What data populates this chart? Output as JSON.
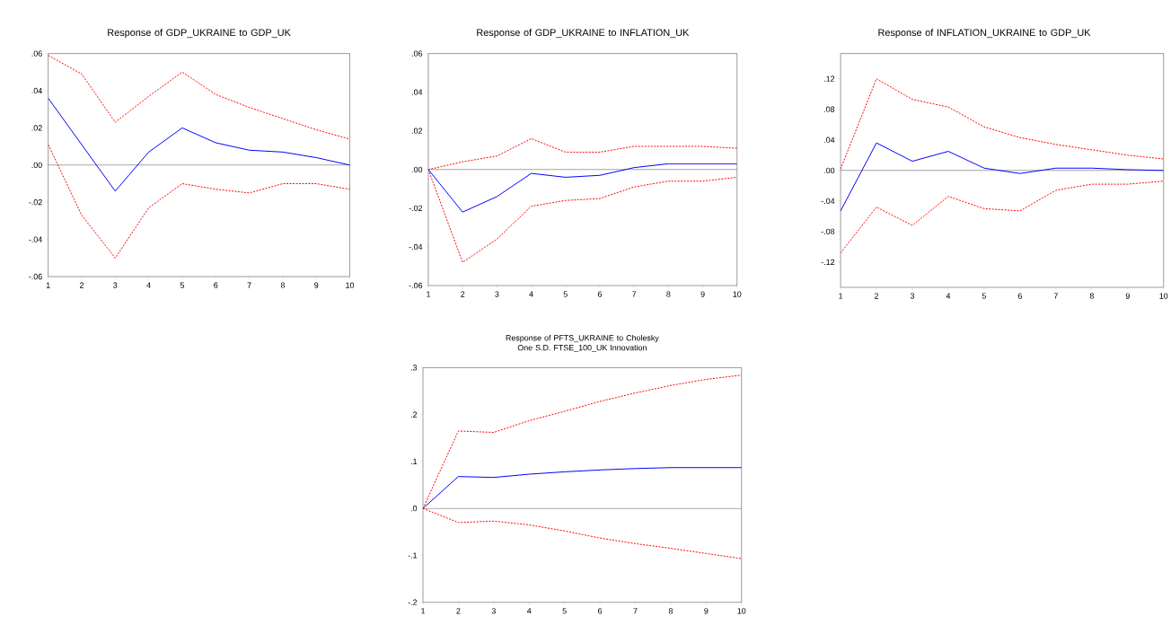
{
  "chart_data": [
    {
      "type": "line",
      "title": "Response of GDP_UKRAINE to GDP_UK",
      "x": [
        1,
        2,
        3,
        4,
        5,
        6,
        7,
        8,
        9,
        10
      ],
      "xlim": [
        1,
        10
      ],
      "xticks": [
        1,
        2,
        3,
        4,
        5,
        6,
        7,
        8,
        9,
        10
      ],
      "ylim": [
        -0.06,
        0.06
      ],
      "yticks": [
        {
          "value": -0.06,
          "label": "-.06"
        },
        {
          "value": -0.04,
          "label": "-.04"
        },
        {
          "value": -0.02,
          "label": "-.02"
        },
        {
          "value": 0,
          "label": ".00"
        },
        {
          "value": 0.02,
          "label": ".02"
        },
        {
          "value": 0.04,
          "label": ".04"
        },
        {
          "value": 0.06,
          "label": ".06"
        }
      ],
      "series": [
        {
          "color": "#0000ff",
          "line_style": "solid",
          "values": [
            0.036,
            0.011,
            -0.014,
            0.007,
            0.02,
            0.012,
            0.008,
            0.007,
            0.004,
            0.0
          ]
        },
        {
          "color": "#ff0000",
          "line_style": "dotted",
          "values": [
            0.059,
            0.049,
            0.023,
            0.037,
            0.05,
            0.038,
            0.031,
            0.025,
            0.019,
            0.014
          ]
        },
        {
          "color": "#ff0000",
          "line_style": "dotted",
          "values": [
            0.011,
            -0.027,
            -0.05,
            -0.023,
            -0.01,
            -0.013,
            -0.015,
            -0.01,
            -0.01,
            -0.013
          ]
        }
      ],
      "ref_lines": [
        {
          "axis": "y",
          "value": 0,
          "color": "#000000"
        }
      ],
      "marker": "none"
    },
    {
      "type": "line",
      "title": "Response of GDP_UKRAINE to INFLATION_UK",
      "x": [
        1,
        2,
        3,
        4,
        5,
        6,
        7,
        8,
        9,
        10
      ],
      "xlim": [
        1,
        10
      ],
      "xticks": [
        1,
        2,
        3,
        4,
        5,
        6,
        7,
        8,
        9,
        10
      ],
      "ylim": [
        -0.06,
        0.06
      ],
      "yticks": [
        {
          "value": -0.06,
          "label": "-.06"
        },
        {
          "value": -0.04,
          "label": "-.04"
        },
        {
          "value": -0.02,
          "label": "-.02"
        },
        {
          "value": 0,
          "label": ".00"
        },
        {
          "value": 0.02,
          "label": ".02"
        },
        {
          "value": 0.04,
          "label": ".04"
        },
        {
          "value": 0.06,
          "label": ".06"
        }
      ],
      "series": [
        {
          "color": "#0000ff",
          "line_style": "solid",
          "values": [
            0.0,
            -0.022,
            -0.014,
            -0.002,
            -0.004,
            -0.003,
            0.001,
            0.003,
            0.003,
            0.003
          ]
        },
        {
          "color": "#ff0000",
          "line_style": "dotted",
          "values": [
            0.0,
            0.004,
            0.007,
            0.016,
            0.009,
            0.009,
            0.012,
            0.012,
            0.012,
            0.011
          ]
        },
        {
          "color": "#ff0000",
          "line_style": "dotted",
          "values": [
            0.0,
            -0.048,
            -0.036,
            -0.019,
            -0.016,
            -0.015,
            -0.009,
            -0.006,
            -0.006,
            -0.004
          ]
        }
      ],
      "ref_lines": [
        {
          "axis": "y",
          "value": 0,
          "color": "#000000"
        }
      ],
      "marker": "none"
    },
    {
      "type": "line",
      "title": "Response of INFLATION_UKRAINE to GDP_UK",
      "x": [
        1,
        2,
        3,
        4,
        5,
        6,
        7,
        8,
        9,
        10
      ],
      "xlim": [
        1,
        10
      ],
      "xticks": [
        1,
        2,
        3,
        4,
        5,
        6,
        7,
        8,
        9,
        10
      ],
      "ylim": [
        -0.153,
        0.153
      ],
      "yticks": [
        {
          "value": -0.12,
          "label": "-.12"
        },
        {
          "value": -0.08,
          "label": "-.08"
        },
        {
          "value": -0.04,
          "label": "-.04"
        },
        {
          "value": 0,
          "label": ".00"
        },
        {
          "value": 0.04,
          "label": ".04"
        },
        {
          "value": 0.08,
          "label": ".08"
        },
        {
          "value": 0.12,
          "label": ".12"
        }
      ],
      "series": [
        {
          "color": "#0000ff",
          "line_style": "solid",
          "values": [
            -0.053,
            0.036,
            0.012,
            0.025,
            0.003,
            -0.004,
            0.003,
            0.003,
            0.001,
            0.0
          ]
        },
        {
          "color": "#ff0000",
          "line_style": "dotted",
          "values": [
            0.002,
            0.12,
            0.093,
            0.083,
            0.057,
            0.043,
            0.034,
            0.027,
            0.02,
            0.015
          ]
        },
        {
          "color": "#ff0000",
          "line_style": "dotted",
          "values": [
            -0.108,
            -0.048,
            -0.072,
            -0.034,
            -0.05,
            -0.053,
            -0.026,
            -0.018,
            -0.018,
            -0.014
          ]
        }
      ],
      "ref_lines": [
        {
          "axis": "y",
          "value": 0,
          "color": "#000000"
        }
      ],
      "marker": "none"
    },
    {
      "type": "line",
      "title": "Response of PFTS_UKRAINE to Cholesky One S.D. FTSE_100_UK Innovation",
      "x": [
        1,
        2,
        3,
        4,
        5,
        6,
        7,
        8,
        9,
        10
      ],
      "xlim": [
        1,
        10
      ],
      "xticks": [
        1,
        2,
        3,
        4,
        5,
        6,
        7,
        8,
        9,
        10
      ],
      "ylim": [
        -0.2,
        0.3
      ],
      "yticks": [
        {
          "value": -0.2,
          "label": "-.2"
        },
        {
          "value": -0.1,
          "label": "-.1"
        },
        {
          "value": 0,
          "label": ".0"
        },
        {
          "value": 0.1,
          "label": ".1"
        },
        {
          "value": 0.2,
          "label": ".2"
        },
        {
          "value": 0.3,
          "label": ".3"
        }
      ],
      "series": [
        {
          "color": "#0000ff",
          "line_style": "solid",
          "values": [
            0.0,
            0.068,
            0.066,
            0.073,
            0.078,
            0.082,
            0.085,
            0.087,
            0.087,
            0.087
          ]
        },
        {
          "color": "#ff0000",
          "line_style": "dotted",
          "values": [
            0.0,
            0.165,
            0.162,
            0.187,
            0.207,
            0.228,
            0.246,
            0.262,
            0.275,
            0.284
          ]
        },
        {
          "color": "#ff0000",
          "line_style": "dotted",
          "values": [
            0.0,
            -0.03,
            -0.027,
            -0.035,
            -0.048,
            -0.063,
            -0.075,
            -0.085,
            -0.096,
            -0.107
          ]
        }
      ],
      "ref_lines": [
        {
          "axis": "y",
          "value": 0,
          "color": "#000000"
        }
      ],
      "marker": "none"
    }
  ]
}
